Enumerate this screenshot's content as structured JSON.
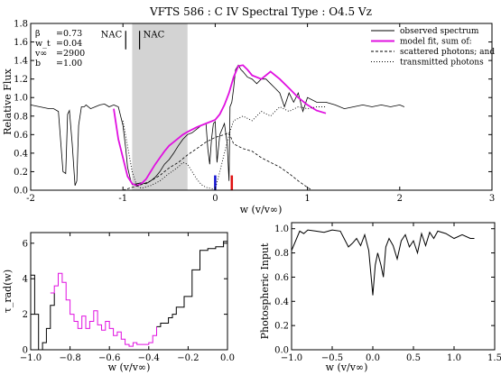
{
  "chart_data": [
    {
      "type": "line",
      "title": "VFTS 586 : C IV      Spectral Type : O4.5 Vz",
      "xlabel": "w (v/v∞)",
      "ylabel": "Relative Flux",
      "xlim": [
        -2,
        3
      ],
      "ylim": [
        0,
        1.8
      ],
      "xticks": [
        -2,
        -1,
        0,
        1,
        2,
        3
      ],
      "yticks": [
        0.0,
        0.2,
        0.4,
        0.6,
        0.8,
        1.0,
        1.2,
        1.4,
        1.6,
        1.8
      ],
      "ytick_labels": [
        "0.0",
        "0.2",
        "0.4",
        "0.6",
        "0.8",
        "1.0",
        "1.2",
        "1.4",
        "1.6",
        "1.8"
      ],
      "params": [
        {
          "name": "β",
          "value": "0.73"
        },
        {
          "name": "w_t",
          "value": "0.04"
        },
        {
          "name": "v∞",
          "value": "2900"
        },
        {
          "name": "b",
          "value": "1.00"
        }
      ],
      "nac_label": "NAC",
      "nac_positions": [
        -0.97,
        -0.82
      ],
      "shaded_band": [
        -0.9,
        -0.3
      ],
      "ground_markers": [
        {
          "x": 0.0,
          "color": "#1010d0"
        },
        {
          "x": 0.18,
          "color": "#e01010"
        }
      ],
      "legend": {
        "placement": "top-right",
        "entries": [
          {
            "label": "observed spectrum",
            "style": "solid",
            "color": "#000000"
          },
          {
            "label": "model fit, sum of:",
            "style": "solid",
            "color": "#e010e0"
          },
          {
            "label": "scattered photons; and",
            "style": "dashed",
            "color": "#000000"
          },
          {
            "label": "transmitted photons",
            "style": "dotted",
            "color": "#000000"
          }
        ]
      },
      "series": [
        {
          "name": "observed spectrum",
          "color": "#000000",
          "x": [
            -2.0,
            -1.9,
            -1.8,
            -1.75,
            -1.7,
            -1.65,
            -1.62,
            -1.6,
            -1.58,
            -1.55,
            -1.52,
            -1.5,
            -1.48,
            -1.45,
            -1.42,
            -1.4,
            -1.35,
            -1.3,
            -1.25,
            -1.2,
            -1.15,
            -1.1,
            -1.05,
            -1.0,
            -0.97,
            -0.95,
            -0.92,
            -0.9,
            -0.85,
            -0.8,
            -0.75,
            -0.7,
            -0.65,
            -0.6,
            -0.55,
            -0.5,
            -0.45,
            -0.4,
            -0.35,
            -0.3,
            -0.25,
            -0.2,
            -0.15,
            -0.1,
            -0.08,
            -0.06,
            -0.04,
            -0.02,
            0.0,
            0.02,
            0.05,
            0.1,
            0.13,
            0.15,
            0.16,
            0.18,
            0.2,
            0.22,
            0.25,
            0.28,
            0.3,
            0.35,
            0.4,
            0.45,
            0.5,
            0.55,
            0.6,
            0.65,
            0.7,
            0.75,
            0.8,
            0.85,
            0.9,
            0.95,
            1.0,
            1.1,
            1.2,
            1.3,
            1.4,
            1.5,
            1.6,
            1.7,
            1.8,
            1.9,
            2.0,
            2.05
          ],
          "y": [
            0.92,
            0.9,
            0.88,
            0.88,
            0.85,
            0.2,
            0.18,
            0.82,
            0.86,
            0.5,
            0.05,
            0.1,
            0.7,
            0.9,
            0.9,
            0.92,
            0.88,
            0.9,
            0.92,
            0.93,
            0.9,
            0.92,
            0.9,
            0.7,
            0.45,
            0.25,
            0.12,
            0.06,
            0.07,
            0.08,
            0.07,
            0.1,
            0.14,
            0.2,
            0.28,
            0.33,
            0.4,
            0.48,
            0.55,
            0.6,
            0.62,
            0.66,
            0.7,
            0.72,
            0.45,
            0.28,
            0.55,
            0.72,
            0.74,
            0.3,
            0.6,
            0.72,
            0.5,
            0.1,
            0.9,
            0.95,
            1.1,
            1.3,
            1.35,
            1.3,
            1.28,
            1.22,
            1.2,
            1.15,
            1.2,
            1.2,
            1.15,
            1.1,
            1.05,
            0.9,
            1.05,
            0.95,
            1.05,
            0.85,
            1.0,
            0.95,
            0.95,
            0.92,
            0.88,
            0.9,
            0.92,
            0.9,
            0.92,
            0.9,
            0.92,
            0.9
          ]
        },
        {
          "name": "model fit, sum of:",
          "color": "#e010e0",
          "x": [
            -1.1,
            -1.05,
            -1.0,
            -0.95,
            -0.9,
            -0.85,
            -0.8,
            -0.75,
            -0.7,
            -0.65,
            -0.6,
            -0.55,
            -0.5,
            -0.45,
            -0.4,
            -0.35,
            -0.3,
            -0.2,
            -0.1,
            0.0,
            0.05,
            0.1,
            0.15,
            0.2,
            0.25,
            0.3,
            0.35,
            0.4,
            0.5,
            0.6,
            0.7,
            0.8,
            0.9,
            1.0,
            1.1,
            1.2
          ],
          "y": [
            0.88,
            0.55,
            0.35,
            0.15,
            0.07,
            0.05,
            0.07,
            0.12,
            0.2,
            0.28,
            0.35,
            0.42,
            0.48,
            0.52,
            0.56,
            0.6,
            0.63,
            0.68,
            0.72,
            0.76,
            0.82,
            0.92,
            1.05,
            1.22,
            1.34,
            1.35,
            1.3,
            1.24,
            1.2,
            1.28,
            1.2,
            1.1,
            1.0,
            0.92,
            0.86,
            0.83
          ]
        },
        {
          "name": "scattered photons; and",
          "color": "#000000",
          "style": "dashed",
          "x": [
            -1.0,
            -0.9,
            -0.8,
            -0.7,
            -0.6,
            -0.5,
            -0.4,
            -0.3,
            -0.2,
            -0.1,
            0.0,
            0.1,
            0.15,
            0.2,
            0.3,
            0.4,
            0.5,
            0.6,
            0.7,
            0.8,
            0.9,
            1.0,
            1.05
          ],
          "y": [
            0.0,
            0.03,
            0.06,
            0.1,
            0.16,
            0.24,
            0.3,
            0.38,
            0.45,
            0.52,
            0.57,
            0.6,
            0.62,
            0.5,
            0.45,
            0.42,
            0.35,
            0.3,
            0.25,
            0.18,
            0.1,
            0.03,
            0.0
          ]
        },
        {
          "name": "transmitted photons",
          "color": "#000000",
          "style": "dotted",
          "x": [
            -1.0,
            -0.9,
            -0.85,
            -0.8,
            -0.7,
            -0.6,
            -0.5,
            -0.4,
            -0.35,
            -0.3,
            -0.25,
            -0.2,
            -0.15,
            -0.1,
            -0.05,
            0.0,
            0.05,
            0.1,
            0.15,
            0.2,
            0.3,
            0.4,
            0.5,
            0.6,
            0.7,
            0.8,
            0.9,
            1.0,
            1.1,
            1.2
          ],
          "y": [
            0.75,
            0.2,
            0.05,
            0.02,
            0.05,
            0.1,
            0.18,
            0.25,
            0.3,
            0.28,
            0.2,
            0.12,
            0.06,
            0.03,
            0.02,
            0.01,
            0.2,
            0.4,
            0.6,
            0.75,
            0.8,
            0.75,
            0.85,
            0.8,
            0.9,
            0.85,
            0.9,
            0.88,
            0.9,
            0.9
          ]
        }
      ]
    },
    {
      "type": "line",
      "xlabel": "w (v/v∞)",
      "ylabel": "τ_rad(w)",
      "xlim": [
        -1.0,
        0.0
      ],
      "ylim": [
        0,
        6.6
      ],
      "xticks": [
        -1.0,
        -0.8,
        -0.6,
        -0.4,
        -0.2,
        0.0
      ],
      "xtick_labels": [
        "−1.0",
        "−0.8",
        "−0.6",
        "−0.4",
        "−0.2",
        "0.0"
      ],
      "yticks": [
        0,
        2,
        4,
        6
      ],
      "ytick_labels": [
        "0",
        "2",
        "4",
        "6"
      ],
      "series": [
        {
          "color": "#000000",
          "x": [
            -1.0,
            -0.98,
            -0.96,
            -0.94,
            -0.92,
            -0.9,
            -0.88
          ],
          "y": [
            4.2,
            2.0,
            0.0,
            0.4,
            1.2,
            2.5,
            3.2
          ],
          "step": true
        },
        {
          "color": "#e010e0",
          "x": [
            -0.9,
            -0.88,
            -0.86,
            -0.84,
            -0.82,
            -0.8,
            -0.78,
            -0.76,
            -0.74,
            -0.72,
            -0.7,
            -0.68,
            -0.66,
            -0.64,
            -0.62,
            -0.6,
            -0.58,
            -0.56,
            -0.54,
            -0.52,
            -0.5,
            -0.48,
            -0.46,
            -0.44,
            -0.42,
            -0.4,
            -0.38,
            -0.36
          ],
          "y": [
            3.2,
            3.6,
            4.3,
            3.8,
            2.8,
            2.0,
            1.6,
            1.2,
            1.9,
            1.2,
            1.6,
            2.2,
            1.4,
            1.1,
            1.6,
            1.2,
            0.8,
            1.0,
            0.6,
            0.3,
            0.2,
            0.4,
            0.3,
            0.3,
            0.3,
            0.4,
            0.8,
            1.3
          ]
        },
        {
          "color": "#000000",
          "x": [
            -0.36,
            -0.34,
            -0.32,
            -0.3,
            -0.28,
            -0.26,
            -0.24,
            -0.22,
            -0.2,
            -0.18,
            -0.16,
            -0.14,
            -0.12,
            -0.1,
            -0.08,
            -0.06,
            -0.04,
            -0.02,
            0.0
          ],
          "y": [
            1.3,
            1.5,
            1.5,
            1.8,
            2.0,
            2.4,
            2.4,
            3.0,
            3.0,
            4.5,
            4.5,
            5.6,
            5.6,
            5.7,
            5.7,
            5.8,
            5.8,
            6.1,
            6.1
          ]
        }
      ]
    },
    {
      "type": "line",
      "xlabel": "w (v/v∞)",
      "ylabel": "Photospheric Input",
      "xlim": [
        -1.0,
        1.5
      ],
      "ylim": [
        0,
        1.05
      ],
      "xticks": [
        -1.0,
        -0.5,
        0.0,
        0.5,
        1.0,
        1.5
      ],
      "xtick_labels": [
        "−1.0",
        "−0.5",
        "0.0",
        "0.5",
        "1.0",
        "1.5"
      ],
      "yticks": [
        0.0,
        0.2,
        0.4,
        0.6,
        0.8,
        1.0
      ],
      "ytick_labels": [
        "0.0",
        "0.2",
        "0.4",
        "0.6",
        "0.8",
        "1.0"
      ],
      "series": [
        {
          "color": "#000000",
          "x": [
            -1.0,
            -0.9,
            -0.85,
            -0.8,
            -0.7,
            -0.6,
            -0.5,
            -0.4,
            -0.3,
            -0.25,
            -0.2,
            -0.15,
            -0.1,
            -0.05,
            0.0,
            0.03,
            0.06,
            0.1,
            0.13,
            0.16,
            0.2,
            0.25,
            0.3,
            0.35,
            0.4,
            0.45,
            0.5,
            0.55,
            0.6,
            0.65,
            0.7,
            0.75,
            0.8,
            0.9,
            1.0,
            1.1,
            1.2,
            1.25
          ],
          "y": [
            0.82,
            0.98,
            0.96,
            0.99,
            0.98,
            0.97,
            0.99,
            0.98,
            0.85,
            0.88,
            0.92,
            0.86,
            0.95,
            0.82,
            0.45,
            0.7,
            0.8,
            0.7,
            0.6,
            0.85,
            0.92,
            0.86,
            0.75,
            0.9,
            0.95,
            0.85,
            0.9,
            0.8,
            0.96,
            0.86,
            0.97,
            0.92,
            0.98,
            0.96,
            0.92,
            0.95,
            0.92,
            0.92
          ]
        }
      ]
    }
  ]
}
